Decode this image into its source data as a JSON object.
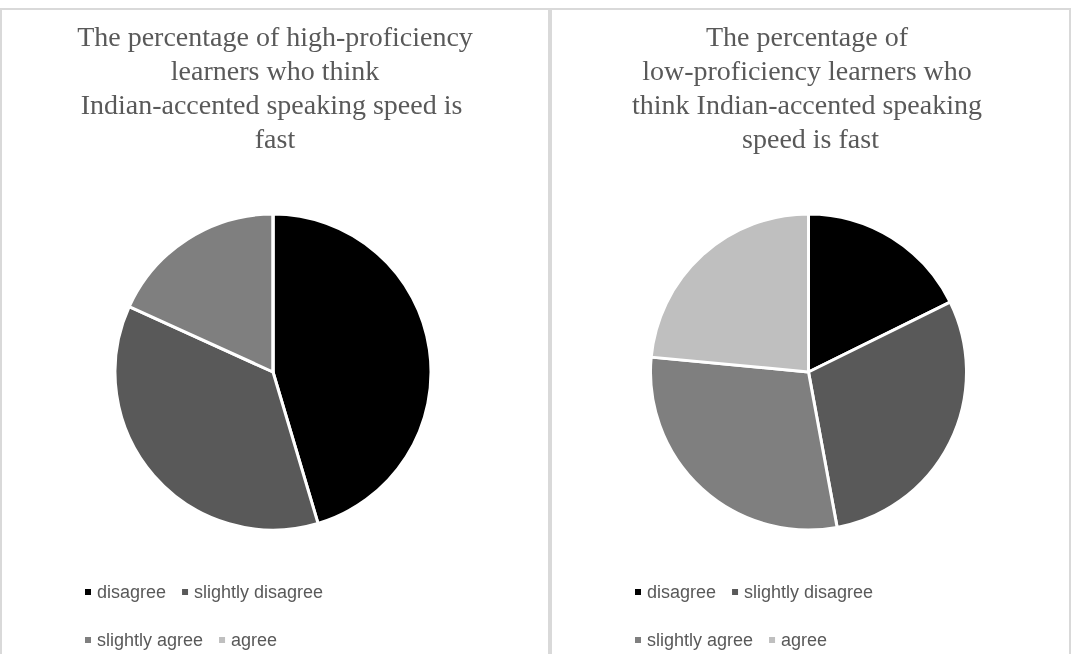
{
  "chart_data": [
    {
      "type": "pie",
      "title": "The percentage of high-proficiency learners who think Indian-accented speaking speed is fast",
      "categories": [
        "disagree",
        "slightly disagree",
        "slightly agree",
        "agree"
      ],
      "values": [
        45.4,
        36.4,
        18.2,
        0
      ],
      "colors": [
        "#000000",
        "#595959",
        "#7f7f7f",
        "#bfbfbf"
      ],
      "legend": "bottom"
    },
    {
      "type": "pie",
      "title": "The percentage of low-proficiency learners who think Indian-accented speaking speed is fast",
      "categories": [
        "disagree",
        "slightly disagree",
        "slightly agree",
        "agree"
      ],
      "values": [
        17.7,
        29.4,
        29.4,
        23.5
      ],
      "colors": [
        "#000000",
        "#595959",
        "#7f7f7f",
        "#bfbfbf"
      ],
      "legend": "bottom"
    }
  ]
}
